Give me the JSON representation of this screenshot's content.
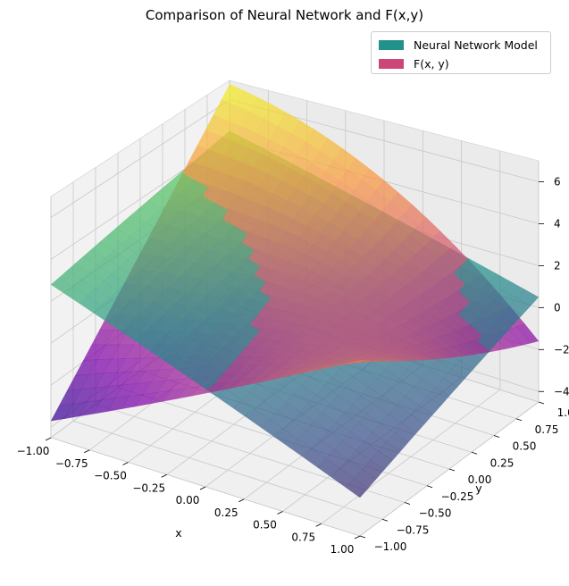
{
  "chart_data": {
    "type": "surface3d",
    "title": "Comparison of Neural Network and F(x,y)",
    "xlabel": "x",
    "ylabel": "y",
    "zlabel": "",
    "xlim": [
      -1.0,
      1.0
    ],
    "ylim": [
      -1.0,
      1.0
    ],
    "zlim": [
      -4.5,
      7.0
    ],
    "grid": true,
    "legend_position": "top-right",
    "x_ticks": [
      "−1.00",
      "−0.75",
      "−0.50",
      "−0.25",
      "0.00",
      "0.25",
      "0.50",
      "0.75",
      "1.00"
    ],
    "y_ticks": [
      "−1.00",
      "−0.75",
      "−0.50",
      "−0.25",
      "0.00",
      "0.25",
      "0.50",
      "0.75",
      "1.00"
    ],
    "z_ticks": [
      "−4",
      "−2",
      "0",
      "2",
      "4",
      "6"
    ],
    "x_tick_values": [
      -1.0,
      -0.75,
      -0.5,
      -0.25,
      0.0,
      0.25,
      0.5,
      0.75,
      1.0
    ],
    "y_tick_values": [
      -1.0,
      -0.75,
      -0.5,
      -0.25,
      0.0,
      0.25,
      0.5,
      0.75,
      1.0
    ],
    "z_tick_values": [
      -4,
      -2,
      0,
      2,
      4,
      6
    ],
    "series": [
      {
        "name": "Neural Network Model",
        "color": "#21918c",
        "colormap": "viridis",
        "approx_plane": {
          "a": -2.4,
          "b": 2.0,
          "c": 0.35
        },
        "corner_values": [
          {
            "x": -1.0,
            "y": -1.0,
            "z": 2.8
          },
          {
            "x": 1.0,
            "y": -1.0,
            "z": -2.8
          },
          {
            "x": -1.0,
            "y": 1.0,
            "z": 4.4
          },
          {
            "x": 1.0,
            "y": 1.0,
            "z": 0.5
          }
        ]
      },
      {
        "name": "F(x, y)",
        "color": "#cc4778",
        "colormap": "plasma",
        "corner_values": [
          {
            "x": -1.0,
            "y": -1.0,
            "z": -3.7
          },
          {
            "x": 1.0,
            "y": -1.0,
            "z": 3.3
          },
          {
            "x": -1.0,
            "y": 1.0,
            "z": 6.8
          },
          {
            "x": 1.0,
            "y": 1.0,
            "z": -1.6
          }
        ]
      }
    ]
  },
  "legend": {
    "items": [
      {
        "label": "Neural Network Model",
        "color": "#21918c"
      },
      {
        "label": "F(x, y)",
        "color": "#cc4778"
      }
    ]
  }
}
